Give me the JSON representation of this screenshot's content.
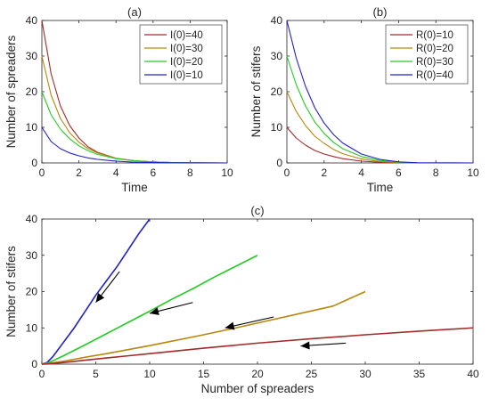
{
  "chart_data": [
    {
      "type": "line",
      "panel_label": "(a)",
      "xlabel": "Time",
      "ylabel": "Number of spreaders",
      "xlim": [
        0,
        10
      ],
      "ylim": [
        0,
        40
      ],
      "xticks": [
        0,
        2,
        4,
        6,
        8,
        10
      ],
      "yticks": [
        0,
        10,
        20,
        30,
        40
      ],
      "grid": false,
      "legend_position": "top-right",
      "series": [
        {
          "name": "I(0)=40",
          "color": "#a52a2a",
          "x": [
            0,
            0.5,
            1,
            1.5,
            2,
            2.5,
            3,
            4,
            5,
            6,
            7,
            8,
            10
          ],
          "y": [
            40,
            25,
            16,
            10.5,
            7,
            4.5,
            3,
            1.3,
            0.6,
            0.3,
            0.1,
            0.05,
            0
          ]
        },
        {
          "name": "I(0)=30",
          "color": "#b8860b",
          "x": [
            0,
            0.5,
            1,
            1.5,
            2,
            2.5,
            3,
            4,
            5,
            6,
            7,
            8,
            10
          ],
          "y": [
            30,
            19,
            12.5,
            8.5,
            5.8,
            4,
            2.8,
            1.3,
            0.6,
            0.3,
            0.1,
            0.05,
            0
          ]
        },
        {
          "name": "I(0)=20",
          "color": "#22cc22",
          "x": [
            0,
            0.5,
            1,
            1.5,
            2,
            2.5,
            3,
            4,
            5,
            6,
            7,
            8,
            10
          ],
          "y": [
            20,
            13.5,
            9.5,
            6.8,
            4.8,
            3.4,
            2.4,
            1.2,
            0.6,
            0.3,
            0.1,
            0.05,
            0
          ]
        },
        {
          "name": "I(0)=10",
          "color": "#2020cc",
          "x": [
            0,
            0.5,
            1,
            1.5,
            2,
            2.5,
            3,
            4,
            5,
            6,
            7,
            8,
            10
          ],
          "y": [
            10,
            6,
            4,
            2.8,
            2,
            1.4,
            1,
            0.5,
            0.2,
            0.1,
            0.05,
            0.02,
            0
          ]
        }
      ]
    },
    {
      "type": "line",
      "panel_label": "(b)",
      "xlabel": "Time",
      "ylabel": "Number of stifers",
      "xlim": [
        0,
        10
      ],
      "ylim": [
        0,
        40
      ],
      "xticks": [
        0,
        2,
        4,
        6,
        8,
        10
      ],
      "yticks": [
        0,
        10,
        20,
        30,
        40
      ],
      "grid": false,
      "legend_position": "top-right",
      "series": [
        {
          "name": "R(0)=10",
          "color": "#a52a2a",
          "x": [
            0,
            0.5,
            1,
            1.5,
            2,
            2.5,
            3,
            4,
            5,
            6,
            7,
            10
          ],
          "y": [
            10,
            7,
            5,
            3.5,
            2.5,
            1.8,
            1.2,
            0.5,
            0.2,
            0.05,
            0,
            0
          ]
        },
        {
          "name": "R(0)=20",
          "color": "#b8860b",
          "x": [
            0,
            0.5,
            1,
            1.5,
            2,
            2.5,
            3,
            4,
            5,
            6,
            7,
            10
          ],
          "y": [
            20,
            14.5,
            10.5,
            7.5,
            5.5,
            3.8,
            2.6,
            1.1,
            0.4,
            0.1,
            0,
            0
          ]
        },
        {
          "name": "R(0)=30",
          "color": "#22cc22",
          "x": [
            0,
            0.5,
            1,
            1.5,
            2,
            2.5,
            3,
            4,
            5,
            6,
            7,
            10
          ],
          "y": [
            30,
            22,
            16,
            11.5,
            8.3,
            5.8,
            4,
            1.8,
            0.7,
            0.2,
            0.05,
            0
          ]
        },
        {
          "name": "R(0)=40",
          "color": "#2020cc",
          "x": [
            0,
            0.5,
            1,
            1.5,
            2,
            2.5,
            3,
            4,
            5,
            6,
            7,
            10
          ],
          "y": [
            40,
            29.5,
            21.5,
            15.5,
            11.2,
            8,
            5.6,
            2.5,
            1,
            0.3,
            0.05,
            0
          ]
        }
      ]
    },
    {
      "type": "line",
      "panel_label": "(c)",
      "xlabel": "Number of spreaders",
      "ylabel": "Number of stifers",
      "xlim": [
        0,
        40
      ],
      "ylim": [
        0,
        40
      ],
      "xticks": [
        0,
        5,
        10,
        15,
        20,
        25,
        30,
        35,
        40
      ],
      "yticks": [
        0,
        10,
        20,
        30,
        40
      ],
      "grid": false,
      "series": [
        {
          "color": "#2020cc",
          "x": [
            0,
            0.5,
            1,
            2,
            3,
            4,
            5,
            6,
            7,
            8,
            9,
            10
          ],
          "y": [
            0,
            0.5,
            2,
            6,
            10,
            14.5,
            19,
            23,
            27,
            31.5,
            36,
            40
          ]
        },
        {
          "color": "#22cc22",
          "x": [
            0,
            0.5,
            1,
            2,
            4,
            6,
            8,
            10,
            12,
            14,
            16,
            18,
            20
          ],
          "y": [
            0,
            0.3,
            0.9,
            2.3,
            5.3,
            8.4,
            11.5,
            14.6,
            17.8,
            20.8,
            24,
            27,
            30
          ]
        },
        {
          "color": "#b8860b",
          "x": [
            0,
            0.5,
            1,
            2,
            4,
            6,
            8,
            10,
            12,
            15,
            18,
            21,
            24,
            27,
            30
          ],
          "y": [
            0,
            0.1,
            0.35,
            0.8,
            1.9,
            2.9,
            4,
            5.1,
            6.3,
            8.1,
            10,
            12,
            14,
            16,
            20
          ]
        },
        {
          "color": "#a52a2a",
          "x": [
            0,
            0.5,
            1,
            2,
            4,
            6,
            8,
            10,
            15,
            20,
            25,
            30,
            35,
            40
          ],
          "y": [
            0,
            0.05,
            0.2,
            0.45,
            1.1,
            1.7,
            2.3,
            2.9,
            4.4,
            5.8,
            7,
            8.1,
            9.1,
            10
          ]
        }
      ],
      "arrows": [
        {
          "from": [
            7.2,
            25.5
          ],
          "to": [
            5.0,
            17.0
          ]
        },
        {
          "from": [
            14.0,
            17.0
          ],
          "to": [
            10.0,
            14.0
          ]
        },
        {
          "from": [
            21.5,
            13.0
          ],
          "to": [
            17.0,
            10.0
          ]
        },
        {
          "from": [
            28.2,
            5.8
          ],
          "to": [
            24.0,
            5.0
          ]
        }
      ]
    }
  ]
}
